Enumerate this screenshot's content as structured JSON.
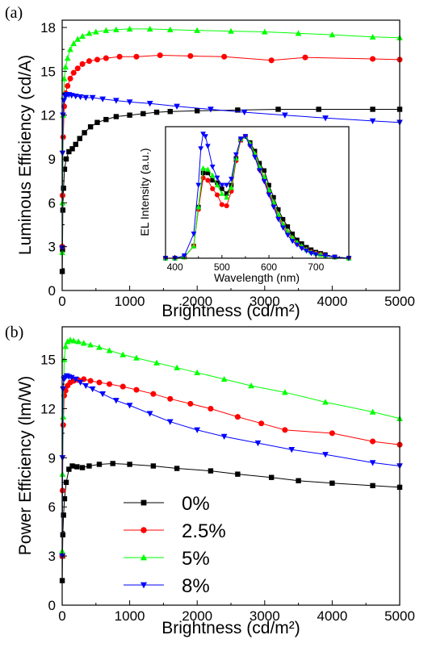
{
  "colors": {
    "0%": "#000000",
    "2.5%": "#ff0000",
    "5%": "#00ff00",
    "8%": "#0000ff"
  },
  "markers": {
    "0%": "square",
    "2.5%": "circle",
    "5%": "triangle-up",
    "8%": "triangle-down"
  },
  "chart_data": [
    {
      "panel": "(a)",
      "type": "line",
      "xlabel": "Brightness (cd/m²)",
      "ylabel": "Luminous Efficiency (cd/A)",
      "xlim": [
        0,
        5000
      ],
      "ylim": [
        0,
        18.5
      ],
      "xticks": [
        0,
        1000,
        2000,
        3000,
        4000,
        5000
      ],
      "yticks": [
        0,
        3,
        6,
        9,
        12,
        15,
        18
      ],
      "xtick_labels": [
        "0",
        "1000",
        "2000",
        "3000",
        "4000",
        "5000"
      ],
      "ytick_labels": [
        "0",
        "3",
        "6",
        "9",
        "12",
        "15",
        "18"
      ],
      "grid": false,
      "series": [
        {
          "name": "0%",
          "x": [
            1,
            5,
            10,
            20,
            35,
            60,
            100,
            150,
            200,
            260,
            330,
            420,
            520,
            650,
            800,
            1000,
            1200,
            1400,
            1600,
            2000,
            2600,
            3200,
            3800,
            4600,
            5000
          ],
          "y": [
            1.3,
            2.8,
            5.5,
            7.0,
            8.3,
            9.0,
            9.5,
            9.7,
            10.0,
            10.4,
            10.8,
            11.2,
            11.5,
            11.7,
            11.9,
            12.0,
            12.1,
            12.2,
            12.25,
            12.3,
            12.35,
            12.4,
            12.4,
            12.4,
            12.4
          ]
        },
        {
          "name": "2.5%",
          "x": [
            1,
            5,
            15,
            30,
            50,
            80,
            120,
            170,
            230,
            300,
            400,
            520,
            650,
            850,
            1100,
            1450,
            1900,
            2400,
            3100,
            3600,
            4600,
            5000
          ],
          "y": [
            3.0,
            6.5,
            10.5,
            12.6,
            13.5,
            14.0,
            14.5,
            14.9,
            15.2,
            15.5,
            15.7,
            15.8,
            15.9,
            16.0,
            16.0,
            16.1,
            16.05,
            16.0,
            15.75,
            15.95,
            15.85,
            15.8
          ]
        },
        {
          "name": "5%",
          "x": [
            1,
            5,
            15,
            30,
            50,
            80,
            120,
            170,
            230,
            300,
            400,
            500,
            650,
            800,
            1000,
            1300,
            1600,
            2000,
            2500,
            3000,
            3500,
            4000,
            4600,
            5000
          ],
          "y": [
            2.6,
            6.0,
            12.0,
            14.5,
            15.3,
            15.9,
            16.5,
            16.9,
            17.2,
            17.4,
            17.6,
            17.7,
            17.8,
            17.85,
            17.9,
            17.9,
            17.85,
            17.8,
            17.75,
            17.7,
            17.6,
            17.5,
            17.35,
            17.3
          ]
        },
        {
          "name": "8%",
          "x": [
            1,
            5,
            12,
            25,
            45,
            70,
            100,
            140,
            200,
            270,
            350,
            450,
            600,
            800,
            1000,
            1300,
            1700,
            2200,
            2700,
            3300,
            3900,
            4600,
            5000
          ],
          "y": [
            2.9,
            9.4,
            12.0,
            13.0,
            13.3,
            13.4,
            13.4,
            13.35,
            13.3,
            13.25,
            13.2,
            13.2,
            13.1,
            13.0,
            12.9,
            12.8,
            12.6,
            12.4,
            12.2,
            12.0,
            11.8,
            11.6,
            11.5
          ]
        }
      ]
    },
    {
      "panel": "(a) inset",
      "type": "line",
      "xlabel": "Wavelength (nm)",
      "ylabel": "EL Intensity (a.u.)",
      "xlim": [
        380,
        770
      ],
      "ylim": [
        0,
        1.08
      ],
      "xticks": [
        400,
        500,
        600,
        700
      ],
      "xtick_labels": [
        "400",
        "500",
        "600",
        "700"
      ],
      "grid": false,
      "series": [
        {
          "name": "0%",
          "x": [
            380,
            400,
            420,
            440,
            450,
            460,
            470,
            480,
            490,
            500,
            510,
            520,
            530,
            540,
            550,
            560,
            570,
            580,
            590,
            600,
            610,
            620,
            630,
            640,
            650,
            660,
            670,
            680,
            690,
            700,
            710,
            720,
            740,
            770
          ],
          "y": [
            0,
            0,
            0.01,
            0.1,
            0.42,
            0.7,
            0.7,
            0.64,
            0.62,
            0.57,
            0.53,
            0.6,
            0.82,
            0.97,
            1.0,
            0.95,
            0.88,
            0.78,
            0.72,
            0.6,
            0.5,
            0.4,
            0.32,
            0.26,
            0.2,
            0.15,
            0.12,
            0.09,
            0.07,
            0.05,
            0.04,
            0.03,
            0.01,
            0
          ]
        },
        {
          "name": "2.5%",
          "x": [
            380,
            400,
            420,
            440,
            450,
            460,
            470,
            480,
            490,
            500,
            510,
            520,
            530,
            540,
            550,
            560,
            570,
            580,
            590,
            600,
            610,
            620,
            630,
            640,
            650,
            660,
            670,
            680,
            690,
            700,
            710,
            720,
            740,
            770
          ],
          "y": [
            0,
            0,
            0.01,
            0.1,
            0.4,
            0.66,
            0.64,
            0.57,
            0.52,
            0.44,
            0.43,
            0.55,
            0.8,
            0.97,
            1.0,
            0.93,
            0.85,
            0.73,
            0.65,
            0.54,
            0.44,
            0.34,
            0.27,
            0.21,
            0.16,
            0.12,
            0.09,
            0.07,
            0.05,
            0.04,
            0.03,
            0.02,
            0.01,
            0
          ]
        },
        {
          "name": "5%",
          "x": [
            380,
            400,
            420,
            440,
            450,
            460,
            470,
            480,
            490,
            500,
            510,
            520,
            530,
            540,
            550,
            560,
            570,
            580,
            590,
            600,
            610,
            620,
            630,
            640,
            650,
            660,
            670,
            680,
            690,
            700,
            710,
            720,
            740,
            770
          ],
          "y": [
            0,
            0,
            0.01,
            0.1,
            0.42,
            0.74,
            0.73,
            0.68,
            0.6,
            0.53,
            0.5,
            0.58,
            0.82,
            0.98,
            1.0,
            0.94,
            0.86,
            0.75,
            0.67,
            0.56,
            0.46,
            0.36,
            0.28,
            0.22,
            0.17,
            0.13,
            0.1,
            0.07,
            0.05,
            0.04,
            0.03,
            0.02,
            0.01,
            0
          ]
        },
        {
          "name": "8%",
          "x": [
            380,
            400,
            420,
            440,
            450,
            455,
            460,
            465,
            470,
            480,
            490,
            500,
            510,
            520,
            530,
            540,
            550,
            560,
            570,
            580,
            590,
            600,
            610,
            620,
            630,
            640,
            650,
            660,
            670,
            680,
            690,
            700,
            720,
            740,
            770
          ],
          "y": [
            0,
            0,
            0.02,
            0.2,
            0.6,
            0.9,
            1.02,
            1.0,
            0.92,
            0.75,
            0.66,
            0.6,
            0.6,
            0.65,
            0.85,
            0.98,
            1.0,
            0.92,
            0.83,
            0.72,
            0.63,
            0.52,
            0.42,
            0.32,
            0.25,
            0.19,
            0.14,
            0.11,
            0.08,
            0.06,
            0.04,
            0.03,
            0.02,
            0.01,
            0
          ]
        }
      ]
    },
    {
      "panel": "(b)",
      "type": "line",
      "xlabel": "Brightness (cd/m²)",
      "ylabel": "Power Efficiency (lm/W)",
      "xlim": [
        0,
        5000
      ],
      "ylim": [
        0,
        17
      ],
      "xticks": [
        0,
        1000,
        2000,
        3000,
        4000,
        5000
      ],
      "yticks": [
        0,
        3,
        6,
        9,
        12,
        15
      ],
      "xtick_labels": [
        "0",
        "1000",
        "2000",
        "3000",
        "4000",
        "5000"
      ],
      "ytick_labels": [
        "0",
        "3",
        "6",
        "9",
        "12",
        "15"
      ],
      "legend_position": "bottom-left",
      "grid": false,
      "series": [
        {
          "name": "0%",
          "x": [
            1,
            5,
            10,
            20,
            35,
            60,
            100,
            150,
            220,
            300,
            400,
            550,
            750,
            1000,
            1350,
            1700,
            2200,
            2600,
            3100,
            3500,
            4000,
            4600,
            5000
          ],
          "y": [
            1.5,
            3.0,
            4.3,
            5.5,
            6.5,
            7.5,
            8.3,
            8.5,
            8.45,
            8.4,
            8.5,
            8.6,
            8.65,
            8.6,
            8.5,
            8.35,
            8.2,
            8.0,
            7.8,
            7.6,
            7.45,
            7.3,
            7.2
          ]
        },
        {
          "name": "2.5%",
          "x": [
            1,
            5,
            15,
            30,
            50,
            80,
            120,
            170,
            240,
            320,
            420,
            550,
            700,
            900,
            1100,
            1350,
            1600,
            1900,
            2200,
            2600,
            2950,
            3300,
            4000,
            4600,
            5000
          ],
          "y": [
            3.0,
            7.0,
            11.0,
            12.8,
            13.1,
            13.4,
            13.6,
            13.7,
            13.75,
            13.8,
            13.7,
            13.6,
            13.5,
            13.35,
            13.15,
            12.9,
            12.6,
            12.3,
            12.0,
            11.5,
            11.1,
            10.7,
            10.5,
            10.0,
            9.8
          ]
        },
        {
          "name": "5%",
          "x": [
            1,
            5,
            15,
            30,
            50,
            80,
            120,
            170,
            240,
            320,
            420,
            550,
            700,
            900,
            1100,
            1400,
            1700,
            2000,
            2400,
            2800,
            3300,
            3900,
            4600,
            5000
          ],
          "y": [
            3.3,
            8.0,
            11.5,
            15.0,
            15.8,
            16.1,
            16.2,
            16.15,
            16.1,
            16.0,
            15.9,
            15.75,
            15.55,
            15.3,
            15.1,
            14.8,
            14.5,
            14.2,
            13.8,
            13.4,
            13.0,
            12.4,
            11.8,
            11.4
          ]
        },
        {
          "name": "8%",
          "x": [
            1,
            5,
            12,
            25,
            45,
            70,
            100,
            140,
            200,
            270,
            350,
            450,
            600,
            800,
            1000,
            1300,
            1600,
            2000,
            2400,
            2900,
            3400,
            3900,
            4600,
            5000
          ],
          "y": [
            3.0,
            9.0,
            13.2,
            13.8,
            13.9,
            14.0,
            13.95,
            13.9,
            13.8,
            13.6,
            13.4,
            13.2,
            12.9,
            12.5,
            12.2,
            11.7,
            11.2,
            10.7,
            10.3,
            9.9,
            9.5,
            9.2,
            8.7,
            8.5
          ]
        }
      ]
    }
  ],
  "legend": {
    "entries": [
      {
        "label": "0%",
        "marker": "square"
      },
      {
        "label": "2.5%",
        "marker": "circle"
      },
      {
        "label": "5%",
        "marker": "triangle-up"
      },
      {
        "label": "8%",
        "marker": "triangle-down"
      }
    ]
  }
}
